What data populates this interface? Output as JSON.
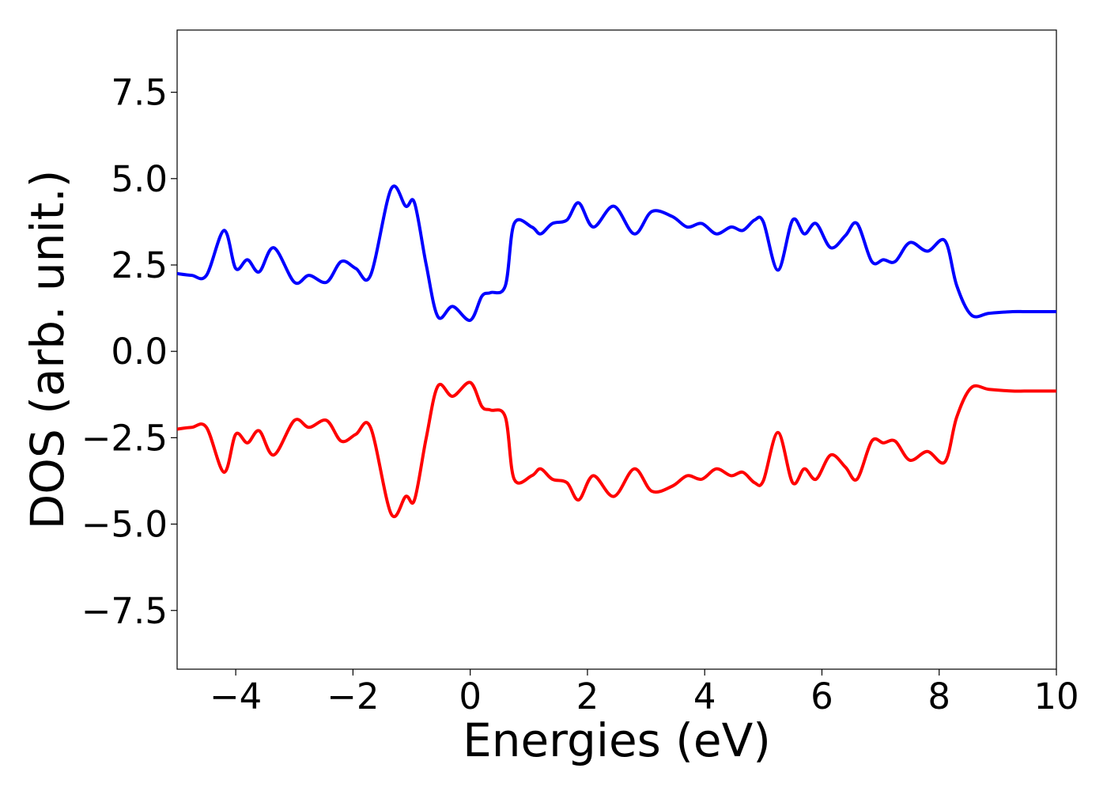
{
  "chart_data": {
    "type": "line",
    "title": "",
    "xlabel": "Energies (eV)",
    "ylabel": "DOS (arb. unit.)",
    "xlim": [
      -5,
      10
    ],
    "ylim": [
      -9.2,
      9.3
    ],
    "xticks": [
      -4,
      -2,
      0,
      2,
      4,
      6,
      8,
      10
    ],
    "xtick_labels": [
      "−4",
      "−2",
      "0",
      "2",
      "4",
      "6",
      "8",
      "10"
    ],
    "yticks": [
      7.5,
      5.0,
      2.5,
      0.0,
      -2.5,
      -5.0,
      -7.5
    ],
    "ytick_labels": [
      "7.5",
      "5.0",
      "2.5",
      "0.0",
      "−2.5",
      "−5.0",
      "−7.5"
    ],
    "grid": false,
    "legend": "none",
    "series": [
      {
        "color": "#0000ff",
        "x": [
          -5.0,
          -4.75,
          -4.5,
          -4.2,
          -4.0,
          -3.8,
          -3.6,
          -3.35,
          -3.0,
          -2.75,
          -2.45,
          -2.2,
          -1.95,
          -1.7,
          -1.35,
          -1.1,
          -0.95,
          -0.75,
          -0.55,
          -0.3,
          0.0,
          0.2,
          0.35,
          0.6,
          0.75,
          1.05,
          1.2,
          1.4,
          1.65,
          1.85,
          2.1,
          2.45,
          2.8,
          3.1,
          3.45,
          3.7,
          3.95,
          4.2,
          4.45,
          4.65,
          4.85,
          5.0,
          5.25,
          5.5,
          5.7,
          5.9,
          6.15,
          6.4,
          6.6,
          6.85,
          7.05,
          7.25,
          7.5,
          7.8,
          8.1,
          8.3,
          8.55,
          8.85,
          9.25,
          9.45,
          9.65,
          9.85,
          10.0
        ],
        "y": [
          2.25,
          2.2,
          2.2,
          3.5,
          2.4,
          2.65,
          2.3,
          3.0,
          2.0,
          2.2,
          2.0,
          2.6,
          2.4,
          2.2,
          4.7,
          4.2,
          4.3,
          2.5,
          1.0,
          1.3,
          0.9,
          1.6,
          1.7,
          1.9,
          3.7,
          3.6,
          3.4,
          3.7,
          3.8,
          4.3,
          3.6,
          4.2,
          3.4,
          4.05,
          3.9,
          3.6,
          3.7,
          3.4,
          3.6,
          3.5,
          3.8,
          3.75,
          2.35,
          3.8,
          3.4,
          3.7,
          3.0,
          3.35,
          3.7,
          2.6,
          2.65,
          2.6,
          3.15,
          2.9,
          3.2,
          1.9,
          1.05,
          1.1,
          1.15,
          1.15,
          1.15,
          1.15,
          1.15
        ]
      },
      {
        "color": "#ff0000",
        "x": [
          -5.0,
          -4.75,
          -4.5,
          -4.2,
          -4.0,
          -3.8,
          -3.6,
          -3.35,
          -3.0,
          -2.75,
          -2.45,
          -2.2,
          -1.95,
          -1.7,
          -1.35,
          -1.1,
          -0.95,
          -0.75,
          -0.55,
          -0.3,
          0.0,
          0.2,
          0.35,
          0.6,
          0.75,
          1.05,
          1.2,
          1.4,
          1.65,
          1.85,
          2.1,
          2.45,
          2.8,
          3.1,
          3.45,
          3.7,
          3.95,
          4.2,
          4.45,
          4.65,
          4.85,
          5.0,
          5.25,
          5.5,
          5.7,
          5.9,
          6.15,
          6.4,
          6.6,
          6.85,
          7.05,
          7.25,
          7.5,
          7.8,
          8.1,
          8.3,
          8.55,
          8.85,
          9.25,
          9.45,
          9.65,
          9.85,
          10.0
        ],
        "y": [
          -2.25,
          -2.2,
          -2.2,
          -3.5,
          -2.4,
          -2.65,
          -2.3,
          -3.0,
          -2.0,
          -2.2,
          -2.0,
          -2.6,
          -2.4,
          -2.2,
          -4.7,
          -4.2,
          -4.3,
          -2.5,
          -1.0,
          -1.3,
          -0.9,
          -1.6,
          -1.7,
          -1.9,
          -3.7,
          -3.6,
          -3.4,
          -3.7,
          -3.8,
          -4.3,
          -3.6,
          -4.2,
          -3.4,
          -4.05,
          -3.9,
          -3.6,
          -3.7,
          -3.4,
          -3.6,
          -3.5,
          -3.8,
          -3.75,
          -2.35,
          -3.8,
          -3.4,
          -3.7,
          -3.0,
          -3.35,
          -3.7,
          -2.6,
          -2.65,
          -2.6,
          -3.15,
          -2.9,
          -3.2,
          -1.9,
          -1.05,
          -1.1,
          -1.15,
          -1.15,
          -1.15,
          -1.15,
          -1.15
        ]
      }
    ]
  }
}
